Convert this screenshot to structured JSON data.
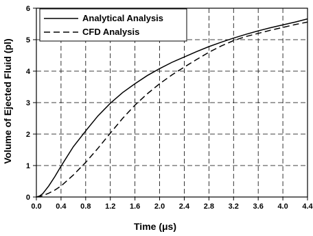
{
  "chart_data": {
    "type": "line",
    "xlabel": "Time (μs)",
    "ylabel": "Volume of Ejected Fluid (pl)",
    "xlim": [
      0,
      4.4
    ],
    "ylim": [
      0,
      6
    ],
    "xticks": [
      "0.0",
      "0.4",
      "0.8",
      "1.2",
      "1.6",
      "2.0",
      "2.4",
      "2.8",
      "3.2",
      "3.6",
      "4.0",
      "4.4"
    ],
    "yticks": [
      "0",
      "1",
      "2",
      "3",
      "4",
      "5",
      "6"
    ],
    "grid": true,
    "legend_position": "top-left",
    "series": [
      {
        "name": "Analytical Analysis",
        "style": "solid",
        "color": "#000000",
        "x": [
          0,
          0.05,
          0.1,
          0.2,
          0.3,
          0.4,
          0.6,
          0.8,
          1.0,
          1.2,
          1.4,
          1.6,
          1.8,
          2.0,
          2.2,
          2.4,
          2.6,
          2.8,
          3.0,
          3.2,
          3.4,
          3.6,
          3.8,
          4.0,
          4.2,
          4.4
        ],
        "y": [
          0,
          0.03,
          0.1,
          0.35,
          0.65,
          0.98,
          1.6,
          2.1,
          2.58,
          2.98,
          3.32,
          3.6,
          3.86,
          4.08,
          4.28,
          4.45,
          4.62,
          4.78,
          4.92,
          5.05,
          5.17,
          5.28,
          5.38,
          5.47,
          5.56,
          5.66
        ]
      },
      {
        "name": "CFD Analysis",
        "style": "dashed",
        "color": "#000000",
        "x": [
          0,
          0.1,
          0.2,
          0.3,
          0.4,
          0.6,
          0.8,
          1.0,
          1.2,
          1.4,
          1.6,
          1.8,
          2.0,
          2.2,
          2.4,
          2.6,
          2.8,
          3.0,
          3.2,
          3.4,
          3.6,
          3.8,
          4.0,
          4.2,
          4.4
        ],
        "y": [
          0,
          0.04,
          0.12,
          0.22,
          0.35,
          0.7,
          1.1,
          1.55,
          2.03,
          2.5,
          2.92,
          3.28,
          3.6,
          3.88,
          4.13,
          4.37,
          4.6,
          4.8,
          4.97,
          5.1,
          5.2,
          5.3,
          5.39,
          5.48,
          5.56
        ]
      }
    ]
  }
}
